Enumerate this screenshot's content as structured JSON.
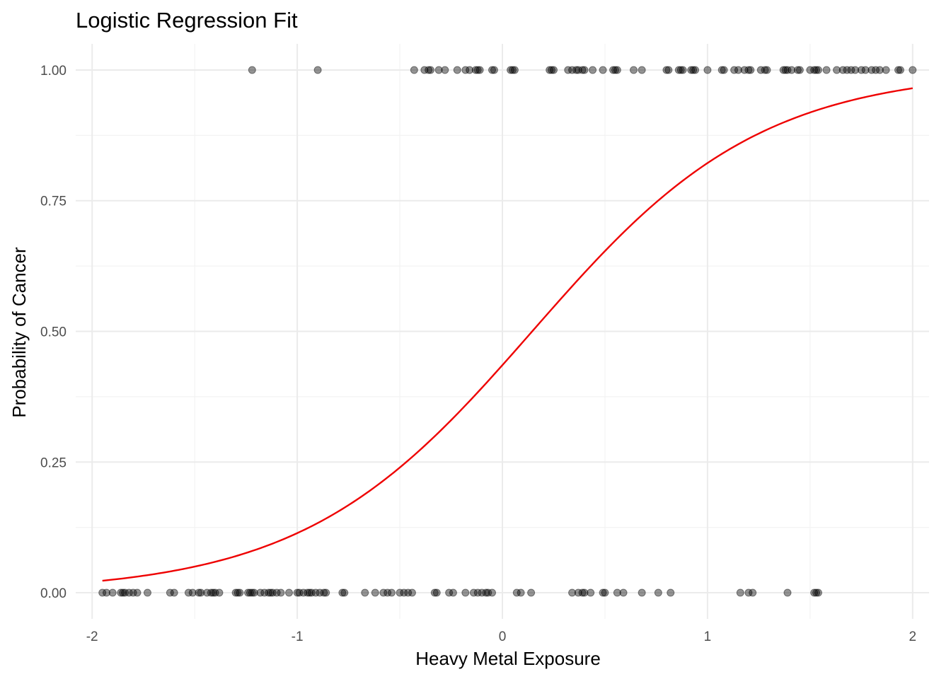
{
  "chart_data": {
    "type": "scatter",
    "title": "Logistic Regression Fit",
    "xlabel": "Heavy Metal Exposure",
    "ylabel": "Probability of Cancer",
    "xlim": [
      -2.08,
      2.08
    ],
    "ylim": [
      -0.05,
      1.05
    ],
    "x_ticks": [
      -2,
      -1,
      0,
      1,
      2
    ],
    "x_tick_labels": [
      "-2",
      "-1",
      "0",
      "1",
      "2"
    ],
    "y_ticks": [
      0,
      0.25,
      0.5,
      0.75,
      1
    ],
    "y_tick_labels": [
      "0.00",
      "0.25",
      "0.50",
      "0.75",
      "1.00"
    ],
    "grid": true,
    "series": [
      {
        "type": "scatter",
        "color": "#000000",
        "opacity": 0.42,
        "points_y1": [
          -1.22,
          -0.9,
          -0.43,
          -0.38,
          -0.36,
          -0.35,
          -0.31,
          -0.28,
          -0.22,
          -0.18,
          -0.16,
          -0.13,
          -0.12,
          -0.11,
          -0.05,
          -0.04,
          0.04,
          0.05,
          0.06,
          0.23,
          0.24,
          0.25,
          0.32,
          0.34,
          0.36,
          0.37,
          0.39,
          0.4,
          0.44,
          0.49,
          0.54,
          0.55,
          0.56,
          0.64,
          0.68,
          0.8,
          0.81,
          0.86,
          0.87,
          0.88,
          0.92,
          0.93,
          0.94,
          1.0,
          1.07,
          1.08,
          1.13,
          1.15,
          1.18,
          1.2,
          1.21,
          1.26,
          1.28,
          1.29,
          1.37,
          1.38,
          1.39,
          1.41,
          1.44,
          1.45,
          1.5,
          1.52,
          1.53,
          1.54,
          1.58,
          1.63,
          1.66,
          1.68,
          1.7,
          1.72,
          1.75,
          1.77,
          1.8,
          1.82,
          1.84,
          1.87,
          1.93,
          1.94,
          2.0
        ],
        "points_y0": [
          -1.95,
          -1.93,
          -1.9,
          -1.86,
          -1.85,
          -1.84,
          -1.82,
          -1.8,
          -1.78,
          -1.73,
          -1.62,
          -1.6,
          -1.53,
          -1.51,
          -1.48,
          -1.47,
          -1.44,
          -1.42,
          -1.41,
          -1.4,
          -1.38,
          -1.3,
          -1.29,
          -1.28,
          -1.24,
          -1.23,
          -1.22,
          -1.21,
          -1.18,
          -1.16,
          -1.14,
          -1.13,
          -1.12,
          -1.1,
          -1.08,
          -1.04,
          -1.0,
          -0.99,
          -0.97,
          -0.95,
          -0.94,
          -0.93,
          -0.91,
          -0.89,
          -0.87,
          -0.86,
          -0.78,
          -0.77,
          -0.67,
          -0.62,
          -0.58,
          -0.56,
          -0.54,
          -0.5,
          -0.48,
          -0.46,
          -0.44,
          -0.33,
          -0.32,
          -0.26,
          -0.24,
          -0.18,
          -0.14,
          -0.12,
          -0.1,
          -0.08,
          -0.07,
          -0.05,
          0.07,
          0.09,
          0.14,
          0.34,
          0.37,
          0.39,
          0.4,
          0.43,
          0.49,
          0.5,
          0.56,
          0.59,
          0.68,
          0.76,
          0.82,
          1.16,
          1.2,
          1.22,
          1.39,
          1.52,
          1.53,
          1.54
        ]
      },
      {
        "type": "line",
        "color": "#ee0000",
        "model": "logistic",
        "intercept": -0.26,
        "slope": 1.79,
        "x_range": [
          -1.95,
          2.0
        ]
      }
    ]
  }
}
